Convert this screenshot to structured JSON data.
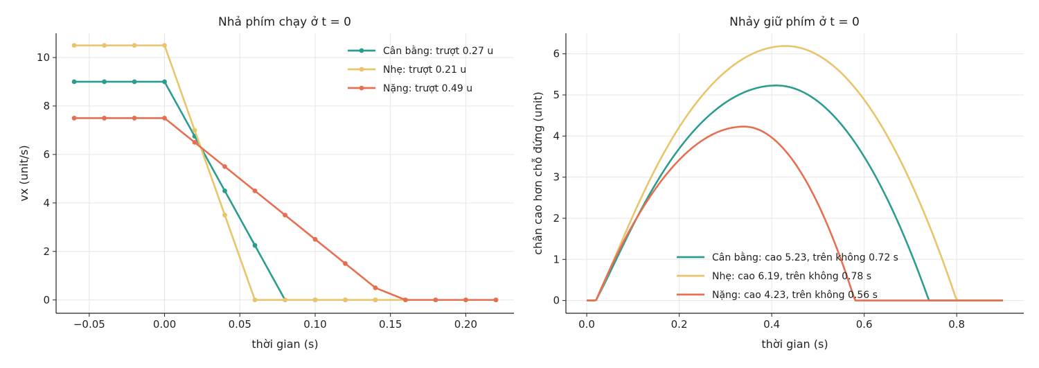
{
  "chart_data": [
    {
      "type": "line",
      "title": "Nhả phím chạy ở t = 0",
      "xlabel": "thời gian (s)",
      "ylabel": "vx (unit/s)",
      "xlim": [
        -0.072,
        0.232
      ],
      "ylim": [
        -0.55,
        11.0
      ],
      "xticks": [
        -0.05,
        0.0,
        0.05,
        0.1,
        0.15,
        0.2
      ],
      "xtick_labels": [
        "−0.05",
        "0.00",
        "0.05",
        "0.10",
        "0.15",
        "0.20"
      ],
      "yticks": [
        0,
        2,
        4,
        6,
        8,
        10
      ],
      "ytick_labels": [
        "0",
        "2",
        "4",
        "6",
        "8",
        "10"
      ],
      "grid": true,
      "markers": true,
      "legend_position": "upper-right",
      "series": [
        {
          "name": "Cân bằng: trượt 0.27 u",
          "color": "#2a9d8f",
          "x": [
            -0.06,
            -0.04,
            -0.02,
            0.0,
            0.02,
            0.04,
            0.06,
            0.08,
            0.1,
            0.12,
            0.14,
            0.16,
            0.18,
            0.2,
            0.22
          ],
          "y": [
            9,
            9,
            9,
            9,
            6.75,
            4.5,
            2.25,
            0,
            0,
            0,
            0,
            0,
            0,
            0,
            0
          ]
        },
        {
          "name": "Nhẹ: trượt 0.21 u",
          "color": "#e9c46a",
          "x": [
            -0.06,
            -0.04,
            -0.02,
            0.0,
            0.02,
            0.04,
            0.06,
            0.08,
            0.1,
            0.12,
            0.14,
            0.16,
            0.18,
            0.2,
            0.22
          ],
          "y": [
            10.5,
            10.5,
            10.5,
            10.5,
            7.0,
            3.5,
            0,
            0,
            0,
            0,
            0,
            0,
            0,
            0,
            0
          ]
        },
        {
          "name": "Nặng: trượt 0.49 u",
          "color": "#e76f51",
          "x": [
            -0.06,
            -0.04,
            -0.02,
            0.0,
            0.02,
            0.04,
            0.06,
            0.08,
            0.1,
            0.12,
            0.14,
            0.16,
            0.18,
            0.2,
            0.22
          ],
          "y": [
            7.5,
            7.5,
            7.5,
            7.5,
            6.5,
            5.5,
            4.5,
            3.5,
            2.5,
            1.5,
            0.5,
            0,
            0,
            0,
            0
          ]
        }
      ]
    },
    {
      "type": "line",
      "title": "Nhảy giữ phím ở t = 0",
      "xlabel": "thời gian (s)",
      "ylabel": "chân cao hơn chỗ đứng (unit)",
      "xlim": [
        -0.045,
        0.945
      ],
      "ylim": [
        -0.31,
        6.5
      ],
      "xticks": [
        0.0,
        0.2,
        0.4,
        0.6,
        0.8
      ],
      "xtick_labels": [
        "0.0",
        "0.2",
        "0.4",
        "0.6",
        "0.8"
      ],
      "yticks": [
        0,
        1,
        2,
        3,
        4,
        5,
        6
      ],
      "ytick_labels": [
        "0",
        "1",
        "2",
        "3",
        "4",
        "5",
        "6"
      ],
      "grid": true,
      "markers": false,
      "legend_position": "lower-center",
      "t_end": 0.9,
      "series": [
        {
          "name": "Cân bằng: cao 5.23, trên không 0.72 s",
          "color": "#2a9d8f",
          "t_start": 0.02,
          "t_peak": 0.41,
          "peak": 5.23,
          "t_land": 0.74,
          "knee": 0.2
        },
        {
          "name": "Nhẹ: cao 6.19, trên không 0.78 s",
          "color": "#e9c46a",
          "t_start": 0.02,
          "t_peak": 0.43,
          "peak": 6.19,
          "t_land": 0.8,
          "knee": 0.2
        },
        {
          "name": "Nặng: cao 4.23, trên không 0.56 s",
          "color": "#e76f51",
          "t_start": 0.02,
          "t_peak": 0.34,
          "peak": 4.23,
          "t_land": 0.58,
          "knee": 0.0
        }
      ]
    }
  ]
}
